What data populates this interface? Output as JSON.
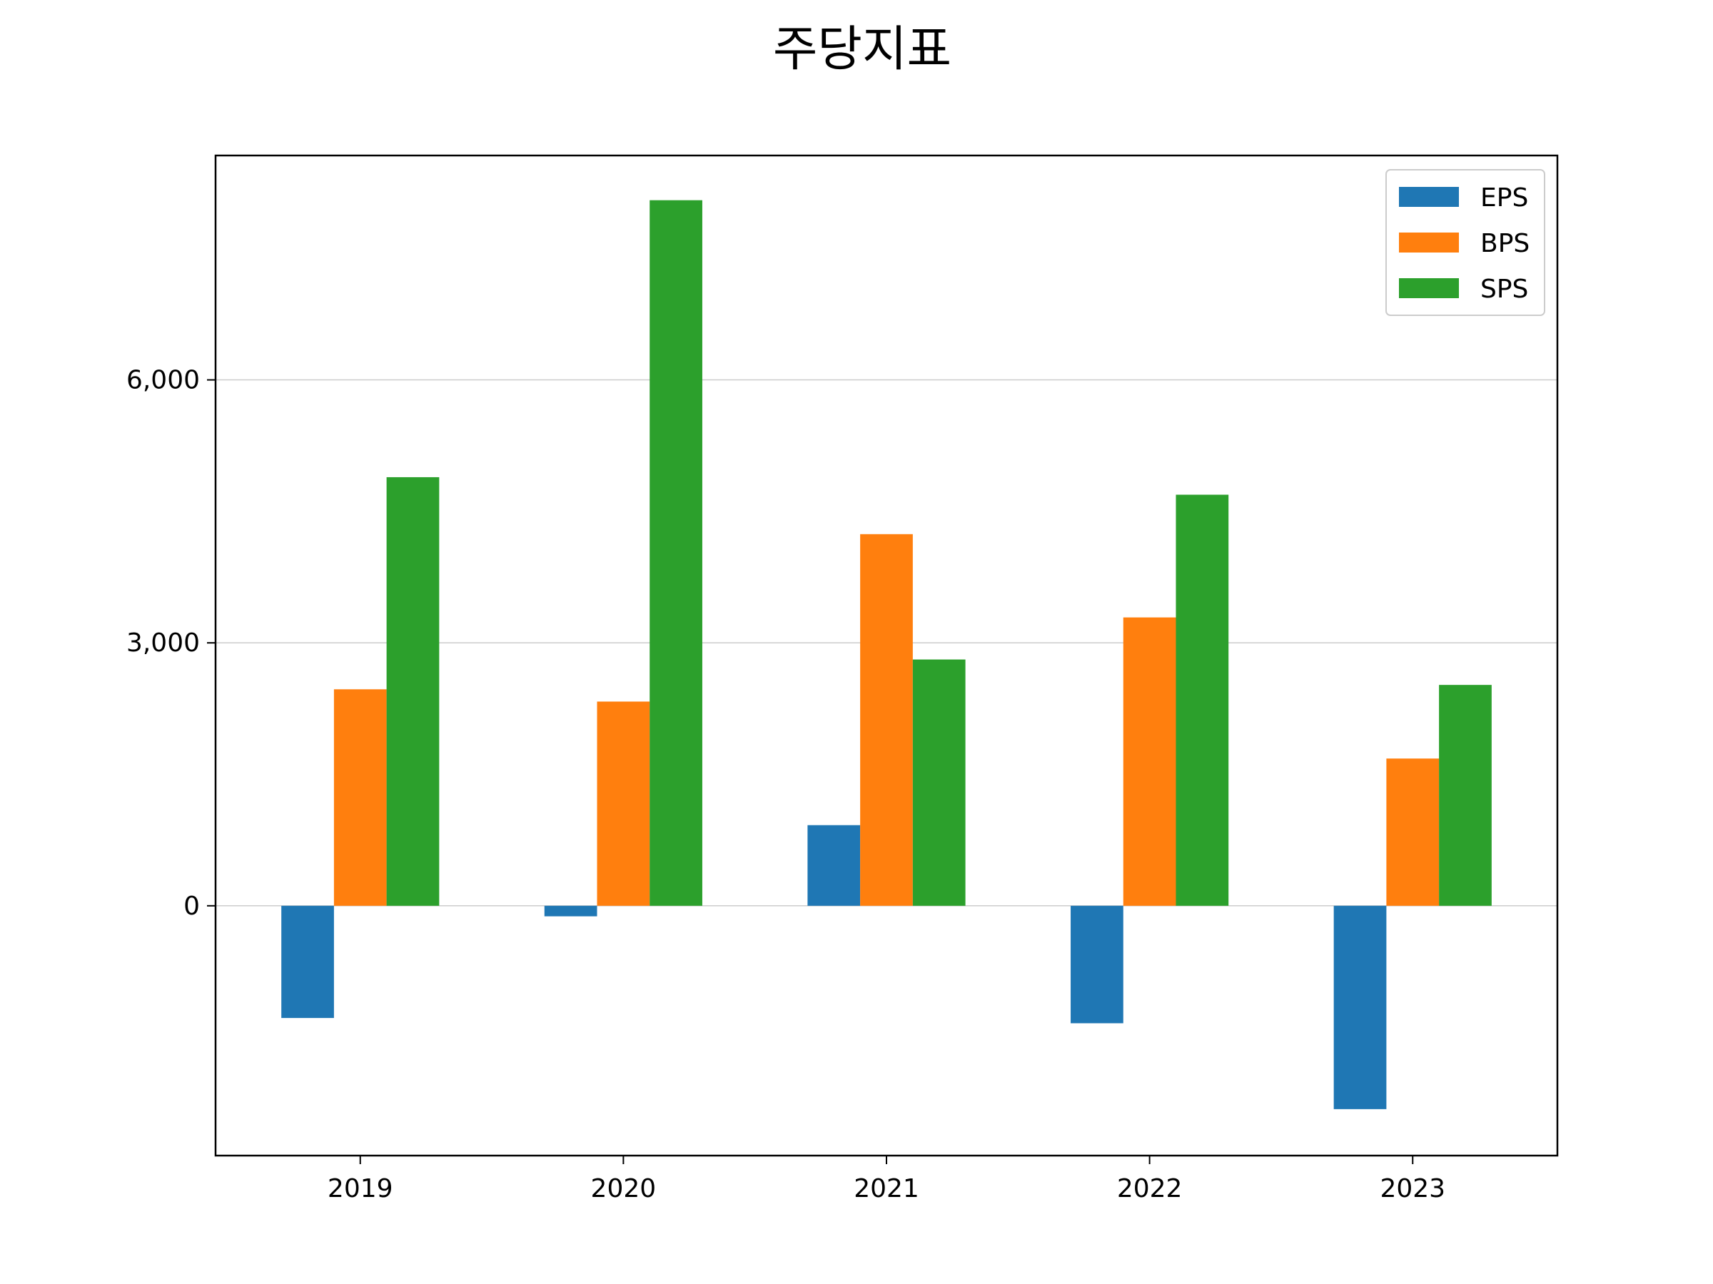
{
  "chart_data": {
    "type": "bar",
    "title": "주당지표",
    "xlabel": "",
    "ylabel": "",
    "categories": [
      "2019",
      "2020",
      "2021",
      "2022",
      "2023"
    ],
    "series": [
      {
        "name": "EPS",
        "color": "#1f77b4",
        "values": [
          -1280,
          -120,
          920,
          -1340,
          -2320
        ]
      },
      {
        "name": "BPS",
        "color": "#ff7f0e",
        "values": [
          2470,
          2330,
          4240,
          3290,
          1680
        ]
      },
      {
        "name": "SPS",
        "color": "#2ca02c",
        "values": [
          4890,
          8050,
          2810,
          4690,
          2520
        ]
      }
    ],
    "yticks": [
      0,
      3000,
      6000
    ],
    "ytick_labels": [
      "0",
      "3,000",
      "6,000"
    ],
    "ylim": [
      -2850,
      8560
    ],
    "grid": "horizontal",
    "legend_position": "top-right"
  }
}
